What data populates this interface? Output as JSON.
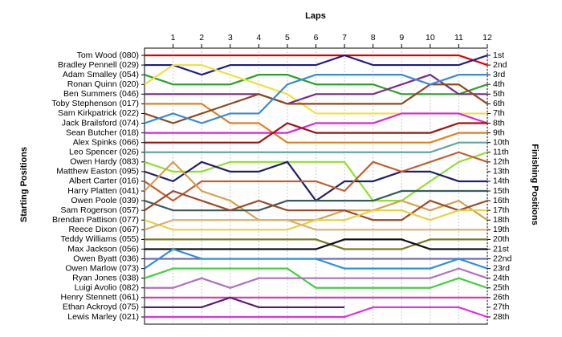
{
  "chart_data": {
    "type": "line",
    "x_label": "Laps",
    "y_label": "Starting Positions",
    "y2_label": "Finishing Positions",
    "x": [
      0,
      1,
      2,
      3,
      4,
      5,
      6,
      7,
      8,
      9,
      10,
      11,
      12
    ],
    "xlim": [
      0,
      12
    ],
    "xticks": [
      1,
      2,
      3,
      4,
      5,
      6,
      7,
      8,
      9,
      10,
      11,
      12
    ],
    "ylim": [
      1,
      28
    ],
    "yticks": [
      {
        "value": 1,
        "label": "1st"
      },
      {
        "value": 2,
        "label": "2nd"
      },
      {
        "value": 3,
        "label": "3rd"
      },
      {
        "value": 4,
        "label": "4th"
      },
      {
        "value": 5,
        "label": "5th"
      },
      {
        "value": 6,
        "label": "6th"
      },
      {
        "value": 7,
        "label": "7th"
      },
      {
        "value": 8,
        "label": "8th"
      },
      {
        "value": 9,
        "label": "9th"
      },
      {
        "value": 10,
        "label": "10th"
      },
      {
        "value": 11,
        "label": "11th"
      },
      {
        "value": 12,
        "label": "12th"
      },
      {
        "value": 13,
        "label": "13th"
      },
      {
        "value": 14,
        "label": "14th"
      },
      {
        "value": 15,
        "label": "15th"
      },
      {
        "value": 16,
        "label": "16th"
      },
      {
        "value": 17,
        "label": "17th"
      },
      {
        "value": 18,
        "label": "18th"
      },
      {
        "value": 19,
        "label": "19th"
      },
      {
        "value": 20,
        "label": "20th"
      },
      {
        "value": 21,
        "label": "21st"
      },
      {
        "value": 22,
        "label": "22nd"
      },
      {
        "value": 23,
        "label": "23rd"
      },
      {
        "value": 24,
        "label": "24th"
      },
      {
        "value": 25,
        "label": "25th"
      },
      {
        "value": 26,
        "label": "26th"
      },
      {
        "value": 27,
        "label": "27th"
      },
      {
        "value": 28,
        "label": "28th"
      }
    ],
    "grid": true,
    "series": [
      {
        "name": "Tom Wood (080)",
        "color": "#e00000",
        "values": [
          1,
          1,
          1,
          1,
          1,
          1,
          1,
          1,
          1,
          1,
          1,
          1,
          2
        ]
      },
      {
        "name": "Bradley Pennell (029)",
        "color": "#1a1a8c",
        "values": [
          2,
          2,
          3,
          2,
          2,
          2,
          2,
          1,
          2,
          2,
          2,
          2,
          1
        ]
      },
      {
        "name": "Adam Smalley (054)",
        "color": "#2ca02c",
        "values": [
          3,
          4,
          4,
          4,
          3,
          3,
          4,
          4,
          4,
          5,
          5,
          5,
          4
        ]
      },
      {
        "name": "Ronan Quinn (020)",
        "color": "#f0e040",
        "values": [
          4,
          2,
          2,
          3,
          4,
          5,
          7,
          7,
          7,
          7,
          7,
          7,
          7
        ]
      },
      {
        "name": "Ben Summers (046)",
        "color": "#7a2a8a",
        "values": [
          5,
          5,
          5,
          5,
          5,
          6,
          5,
          5,
          5,
          4,
          3,
          5,
          5
        ]
      },
      {
        "name": "Toby Stephenson (017)",
        "color": "#e08020",
        "values": [
          6,
          6,
          6,
          8,
          8,
          10,
          10,
          10,
          10,
          10,
          10,
          9,
          9
        ]
      },
      {
        "name": "Sam Kirkpatrick (022)",
        "color": "#8b4a1e",
        "values": [
          7,
          8,
          7,
          6,
          5,
          6,
          6,
          6,
          6,
          6,
          4,
          4,
          6
        ]
      },
      {
        "name": "Jack Brailsford (074)",
        "color": "#3a8ad8",
        "values": [
          8,
          7,
          8,
          7,
          7,
          4,
          3,
          3,
          3,
          3,
          4,
          3,
          3
        ]
      },
      {
        "name": "Sean Butcher (018)",
        "color": "#e020e0",
        "values": [
          9,
          9,
          9,
          9,
          9,
          9,
          8,
          8,
          8,
          7,
          7,
          7,
          8
        ]
      },
      {
        "name": "Alex Spinks (066)",
        "color": "#a01010",
        "values": [
          10,
          10,
          10,
          10,
          10,
          8,
          9,
          9,
          9,
          9,
          9,
          8,
          8
        ]
      },
      {
        "name": "Leo Spencer (026)",
        "color": "#5fa8a0",
        "values": [
          11,
          11,
          11,
          11,
          11,
          11,
          11,
          11,
          11,
          11,
          11,
          10,
          10
        ]
      },
      {
        "name": "Owen Hardy (083)",
        "color": "#90e030",
        "values": [
          12,
          13,
          13,
          12,
          12,
          12,
          12,
          12,
          16,
          16,
          14,
          12,
          11
        ]
      },
      {
        "name": "Matthew Easton (095)",
        "color": "#20206a",
        "values": [
          13,
          14,
          12,
          13,
          13,
          12,
          16,
          14,
          14,
          13,
          13,
          14,
          14
        ]
      },
      {
        "name": "Albert Carter (016)",
        "color": "#c06030",
        "values": [
          14,
          16,
          14,
          14,
          14,
          14,
          14,
          15,
          12,
          13,
          12,
          11,
          12
        ]
      },
      {
        "name": "Harry Platten (041)",
        "color": "#d4a050",
        "values": [
          15,
          12,
          15,
          16,
          18,
          18,
          18,
          17,
          17,
          16,
          17,
          16,
          18
        ]
      },
      {
        "name": "Owen Poole (039)",
        "color": "#3a5a5a",
        "values": [
          16,
          17,
          17,
          17,
          17,
          16,
          16,
          16,
          16,
          15,
          15,
          15,
          15
        ]
      },
      {
        "name": "Sam Rogerson (057)",
        "color": "#9a4a2a",
        "values": [
          17,
          15,
          16,
          17,
          16,
          17,
          17,
          17,
          18,
          18,
          16,
          17,
          16
        ]
      },
      {
        "name": "Brendan Pattison (077)",
        "color": "#e8d040",
        "values": [
          18,
          19,
          19,
          19,
          19,
          19,
          18,
          18,
          17,
          17,
          18,
          17,
          17
        ]
      },
      {
        "name": "Reece Dixon (067)",
        "color": "#d8b070",
        "values": [
          19,
          18,
          18,
          18,
          18,
          18,
          19,
          19,
          19,
          19,
          19,
          19,
          19
        ]
      },
      {
        "name": "Teddy Williams (055)",
        "color": "#7a7a20",
        "values": [
          20,
          20,
          20,
          20,
          20,
          20,
          20,
          21,
          21,
          21,
          20,
          20,
          20
        ]
      },
      {
        "name": "Max Jackson (056)",
        "color": "#101010",
        "values": [
          21,
          21,
          21,
          21,
          21,
          21,
          21,
          20,
          20,
          20,
          21,
          21,
          21
        ]
      },
      {
        "name": "Owen Byatt (036)",
        "color": "#6a6ab0",
        "values": [
          22,
          22,
          22,
          22,
          22,
          22,
          22,
          22,
          22,
          22,
          22,
          22,
          22
        ]
      },
      {
        "name": "Owen Marlow (073)",
        "color": "#2a90e0",
        "values": [
          23,
          21,
          22,
          22,
          22,
          22,
          22,
          23,
          23,
          23,
          23,
          22,
          23
        ]
      },
      {
        "name": "Ryan Jones (038)",
        "color": "#40d040",
        "values": [
          24,
          23,
          23,
          23,
          23,
          23,
          25,
          25,
          25,
          25,
          25,
          24,
          25
        ]
      },
      {
        "name": "Luigi Avolio (082)",
        "color": "#b070c0",
        "values": [
          25,
          25,
          24,
          25,
          24,
          24,
          24,
          24,
          24,
          24,
          24,
          23,
          24
        ]
      },
      {
        "name": "Henry Stennett (061)",
        "color": "#d040b0",
        "values": [
          26,
          26,
          26,
          26,
          26,
          26,
          26,
          26,
          26,
          26,
          26,
          26,
          26
        ]
      },
      {
        "name": "Ethan Ackroyd (075)",
        "color": "#5a1a7a",
        "values": [
          27,
          27,
          27,
          26,
          27,
          27,
          27,
          27,
          null,
          null,
          null,
          null,
          null
        ]
      },
      {
        "name": "Lewis Marley (021)",
        "color": "#e030e0",
        "values": [
          28,
          28,
          28,
          28,
          28,
          28,
          28,
          28,
          27,
          27,
          27,
          27,
          28
        ]
      }
    ]
  }
}
